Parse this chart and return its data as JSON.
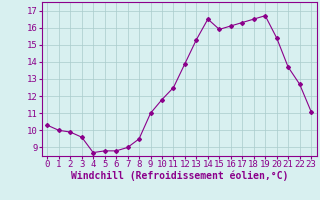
{
  "x": [
    0,
    1,
    2,
    3,
    4,
    5,
    6,
    7,
    8,
    9,
    10,
    11,
    12,
    13,
    14,
    15,
    16,
    17,
    18,
    19,
    20,
    21,
    22,
    23
  ],
  "y": [
    10.3,
    10.0,
    9.9,
    9.6,
    8.7,
    8.8,
    8.8,
    9.0,
    9.5,
    11.0,
    11.8,
    12.5,
    13.9,
    15.3,
    16.5,
    15.9,
    16.1,
    16.3,
    16.5,
    16.7,
    15.4,
    13.7,
    12.7,
    11.1
  ],
  "line_color": "#8b008b",
  "marker": "D",
  "marker_size": 2,
  "bg_color": "#d8f0f0",
  "grid_color": "#aacccc",
  "xlabel": "Windchill (Refroidissement éolien,°C)",
  "xlabel_fontsize": 7,
  "ylim": [
    8.5,
    17.5
  ],
  "yticks": [
    9,
    10,
    11,
    12,
    13,
    14,
    15,
    16,
    17
  ],
  "xticks": [
    0,
    1,
    2,
    3,
    4,
    5,
    6,
    7,
    8,
    9,
    10,
    11,
    12,
    13,
    14,
    15,
    16,
    17,
    18,
    19,
    20,
    21,
    22,
    23
  ],
  "tick_fontsize": 6.5,
  "axis_color": "#8b008b",
  "spine_color": "#8b008b",
  "xlim": [
    -0.5,
    23.5
  ]
}
